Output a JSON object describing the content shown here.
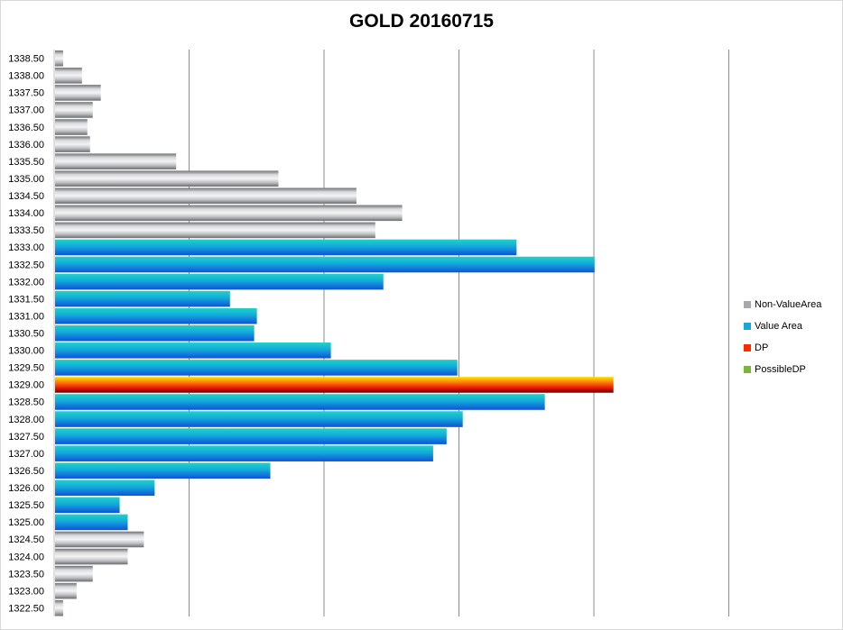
{
  "chart_data": {
    "type": "bar",
    "orientation": "horizontal",
    "title": "GOLD 20160715",
    "xlabel": "",
    "ylabel": "",
    "xlim": [
      0,
      580
    ],
    "grid": "vertical",
    "legend_placement": "right",
    "categories": [
      "1338.50",
      "1338.00",
      "1337.50",
      "1337.00",
      "1336.50",
      "1336.00",
      "1335.50",
      "1335.00",
      "1334.50",
      "1334.00",
      "1333.50",
      "1333.00",
      "1332.50",
      "1332.00",
      "1331.50",
      "1331.00",
      "1330.50",
      "1330.00",
      "1329.50",
      "1329.00",
      "1328.50",
      "1328.00",
      "1327.50",
      "1327.00",
      "1326.50",
      "1326.00",
      "1325.50",
      "1325.00",
      "1324.50",
      "1324.00",
      "1323.50",
      "1323.00",
      "1322.50"
    ],
    "values": [
      6,
      20,
      34,
      28,
      24,
      26,
      90,
      166,
      224,
      258,
      238,
      343,
      401,
      244,
      130,
      150,
      148,
      205,
      299,
      415,
      364,
      303,
      291,
      281,
      160,
      74,
      48,
      54,
      66,
      54,
      28,
      16,
      6
    ],
    "types": [
      "NonValue",
      "NonValue",
      "NonValue",
      "NonValue",
      "NonValue",
      "NonValue",
      "NonValue",
      "NonValue",
      "NonValue",
      "NonValue",
      "NonValue",
      "Value",
      "Value",
      "Value",
      "Value",
      "Value",
      "Value",
      "Value",
      "Value",
      "DP",
      "Value",
      "Value",
      "Value",
      "Value",
      "Value",
      "Value",
      "Value",
      "Value",
      "NonValue",
      "NonValue",
      "NonValue",
      "NonValue",
      "NonValue"
    ],
    "legend": [
      {
        "key": "NonValue",
        "label": "Non-ValueArea",
        "color": "#a7a9ac"
      },
      {
        "key": "Value",
        "label": "Value Area",
        "color": "#1aa7d8"
      },
      {
        "key": "DP",
        "label": "DP",
        "color": "#ff2a00"
      },
      {
        "key": "Possible",
        "label": "PossibleDP",
        "color": "#7db43a"
      }
    ]
  }
}
